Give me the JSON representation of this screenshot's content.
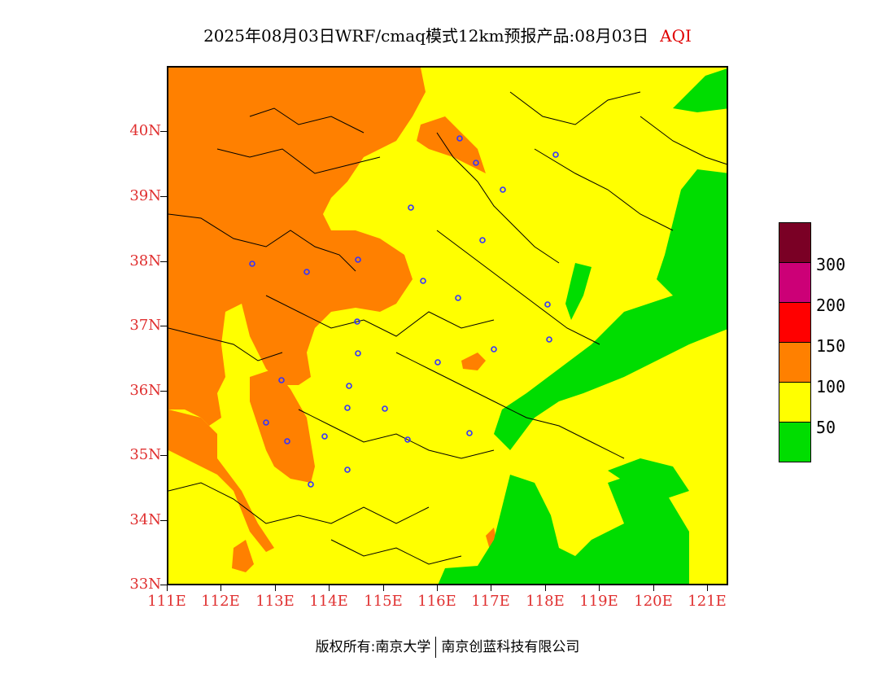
{
  "title": {
    "main": "2025年08月03日WRF/cmaq模式12km预报产品:08月03日",
    "variable": "AQI"
  },
  "map": {
    "latitude_labels": [
      "40N",
      "39N",
      "38N",
      "37N",
      "36N",
      "35N",
      "34N",
      "33N"
    ],
    "longitude_labels": [
      "111E",
      "112E",
      "113E",
      "114E",
      "115E",
      "116E",
      "117E",
      "118E",
      "119E",
      "120E",
      "121E"
    ],
    "lat_range": [
      33,
      41
    ],
    "lon_range": [
      111,
      121.4
    ],
    "colors": {
      "good": "#00dd00",
      "moderate": "#ffff00",
      "sensitive": "#ff8000",
      "unhealthy": "#ff0000",
      "very_unhealthy": "#cc0077",
      "hazardous": "#7a0025",
      "station_marker": "#3333ff"
    },
    "station_icon": "circle-marker-icon"
  },
  "legend": {
    "thresholds": [
      "300",
      "200",
      "150",
      "100",
      "50"
    ],
    "colors": [
      "#7a0025",
      "#cc0077",
      "#ff0000",
      "#ff8000",
      "#ffff00",
      "#00dd00"
    ]
  },
  "footer": {
    "copyright": "版权所有:南京大学",
    "company": "南京创蓝科技有限公司"
  }
}
